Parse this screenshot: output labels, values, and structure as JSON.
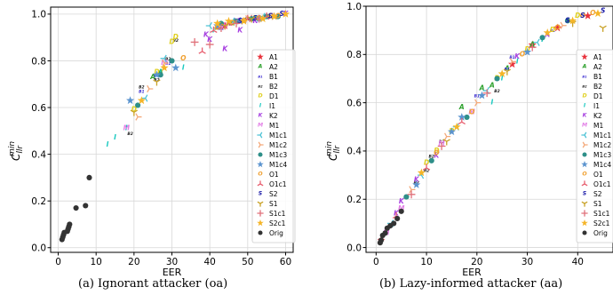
{
  "captions": [
    "(a) Ignorant attacker (oa)",
    "(b) Lazy-informed attacker (aa)"
  ],
  "colors": {
    "A1": "#e8323c",
    "A2": "#2ca02c",
    "B1": "#3b2bd1",
    "B2": "#222222",
    "D1": "#e0d020",
    "I1": "#19c9c0",
    "K2": "#a63ee0",
    "M1": "#e27ee6",
    "M1c1": "#4fc3d6",
    "M1c2": "#f4a97a",
    "M1c3": "#2e8f89",
    "M1c4": "#5b94cf",
    "O1": "#f0a030",
    "O1c1": "#e86070",
    "S2": "#1a1aa8",
    "S1": "#c9a227",
    "S1c1": "#e0707a",
    "S2c1": "#f5b528",
    "Orig": "#333333"
  },
  "chart_data": [
    {
      "type": "scatter",
      "xlabel": "EER",
      "ylabel": "C_llr^min",
      "xlim": [
        -2,
        62
      ],
      "ylim": [
        -0.02,
        1.03
      ],
      "xticks": [
        0,
        10,
        20,
        30,
        40,
        50,
        60
      ],
      "yticks": [
        0.0,
        0.2,
        0.4,
        0.6,
        0.8,
        1.0
      ],
      "grid": true,
      "legend_position": "right",
      "series": [
        {
          "name": "A1",
          "marker": "star",
          "x": [
            44,
            48,
            51,
            55
          ],
          "y": [
            0.95,
            0.97,
            0.98,
            0.99
          ]
        },
        {
          "name": "A2",
          "marker": "A",
          "x": [
            25,
            27,
            42,
            46,
            53
          ],
          "y": [
            0.73,
            0.75,
            0.94,
            0.96,
            0.98
          ]
        },
        {
          "name": "B1",
          "marker": "B1",
          "x": [
            22,
            26,
            29,
            43,
            49
          ],
          "y": [
            0.67,
            0.74,
            0.79,
            0.94,
            0.97
          ]
        },
        {
          "name": "B2",
          "marker": "B2",
          "x": [
            19,
            22,
            26,
            29,
            31,
            45,
            50,
            56
          ],
          "y": [
            0.49,
            0.69,
            0.72,
            0.81,
            0.89,
            0.96,
            0.98,
            0.99
          ]
        },
        {
          "name": "D1",
          "marker": "D",
          "x": [
            20,
            26,
            30,
            31,
            52
          ],
          "y": [
            0.59,
            0.75,
            0.88,
            0.9,
            0.98
          ]
        },
        {
          "name": "I1",
          "marker": "I",
          "x": [
            13,
            15,
            18,
            27,
            33,
            41,
            52
          ],
          "y": [
            0.44,
            0.47,
            0.51,
            0.75,
            0.77,
            0.93,
            0.98
          ]
        },
        {
          "name": "K2",
          "marker": "K",
          "x": [
            39,
            40,
            44,
            48,
            52,
            60
          ],
          "y": [
            0.91,
            0.89,
            0.85,
            0.93,
            0.97,
            1.0
          ]
        },
        {
          "name": "M1",
          "marker": "M",
          "x": [
            18,
            28,
            44,
            47
          ],
          "y": [
            0.51,
            0.79,
            0.95,
            0.97
          ]
        },
        {
          "name": "M1c1",
          "marker": "tri-left",
          "x": [
            23,
            28,
            40,
            46,
            54
          ],
          "y": [
            0.64,
            0.81,
            0.95,
            0.97,
            0.99
          ]
        },
        {
          "name": "M1c2",
          "marker": "tri-right",
          "x": [
            21,
            24,
            28,
            45,
            50,
            57
          ],
          "y": [
            0.56,
            0.68,
            0.79,
            0.96,
            0.98,
            0.99
          ]
        },
        {
          "name": "M1c3",
          "marker": "dot",
          "x": [
            21,
            27,
            30,
            43,
            47,
            51,
            55,
            58
          ],
          "y": [
            0.61,
            0.74,
            0.8,
            0.96,
            0.97,
            0.98,
            0.99,
            0.99
          ]
        },
        {
          "name": "M1c4",
          "marker": "star",
          "x": [
            19,
            26,
            31,
            42,
            48,
            53,
            57
          ],
          "y": [
            0.63,
            0.74,
            0.77,
            0.95,
            0.97,
            0.98,
            0.99
          ]
        },
        {
          "name": "O1",
          "marker": "O",
          "x": [
            33,
            42,
            46,
            49,
            53,
            56,
            58
          ],
          "y": [
            0.81,
            0.94,
            0.96,
            0.97,
            0.98,
            0.99,
            0.99
          ]
        },
        {
          "name": "O1c1",
          "marker": "tri-up",
          "x": [
            38,
            41,
            45,
            50,
            55
          ],
          "y": [
            0.84,
            0.93,
            0.96,
            0.98,
            0.99
          ]
        },
        {
          "name": "S2",
          "marker": "S",
          "x": [
            48,
            52,
            56,
            59
          ],
          "y": [
            0.97,
            0.98,
            0.99,
            1.0
          ]
        },
        {
          "name": "S1",
          "marker": "tri-down",
          "x": [
            20,
            26,
            44,
            51
          ],
          "y": [
            0.58,
            0.71,
            0.95,
            0.98
          ]
        },
        {
          "name": "S1c1",
          "marker": "plus",
          "x": [
            36,
            40,
            43,
            47,
            53
          ],
          "y": [
            0.88,
            0.87,
            0.94,
            0.96,
            0.98
          ]
        },
        {
          "name": "S2c1",
          "marker": "star",
          "x": [
            22,
            28,
            42,
            45,
            49,
            54,
            57,
            60
          ],
          "y": [
            0.63,
            0.77,
            0.96,
            0.97,
            0.97,
            0.98,
            0.99,
            1.0
          ]
        },
        {
          "name": "Orig",
          "marker": "dot",
          "x": [
            1.0,
            1.2,
            1.4,
            1.6,
            2.4,
            2.6,
            2.8,
            3.0,
            4.7,
            7.2,
            8.2
          ],
          "y": [
            0.035,
            0.045,
            0.055,
            0.065,
            0.07,
            0.08,
            0.09,
            0.1,
            0.17,
            0.18,
            0.3
          ]
        }
      ]
    },
    {
      "type": "scatter",
      "xlabel": "EER",
      "ylabel": "C_llr^min",
      "xlim": [
        -2,
        47
      ],
      "ylim": [
        -0.02,
        1.0
      ],
      "xticks": [
        0,
        10,
        20,
        30,
        40
      ],
      "yticks": [
        0.0,
        0.2,
        0.4,
        0.6,
        0.8,
        1.0
      ],
      "grid": true,
      "legend_position": "right",
      "series": [
        {
          "name": "A1",
          "marker": "star",
          "x": [
            27,
            31,
            36,
            42
          ],
          "y": [
            0.76,
            0.84,
            0.91,
            0.96
          ]
        },
        {
          "name": "A2",
          "marker": "A",
          "x": [
            17,
            21,
            23,
            26,
            31
          ],
          "y": [
            0.58,
            0.66,
            0.67,
            0.74,
            0.84
          ]
        },
        {
          "name": "B1",
          "marker": "B1",
          "x": [
            20,
            26,
            27,
            35
          ],
          "y": [
            0.63,
            0.74,
            0.79,
            0.9
          ]
        },
        {
          "name": "B2",
          "marker": "B2",
          "x": [
            6,
            8,
            10,
            11,
            13,
            24
          ],
          "y": [
            0.21,
            0.27,
            0.32,
            0.38,
            0.44,
            0.65
          ]
        },
        {
          "name": "D1",
          "marker": "D",
          "x": [
            10,
            12,
            15,
            24,
            30,
            35,
            40
          ],
          "y": [
            0.35,
            0.4,
            0.48,
            0.7,
            0.82,
            0.9,
            0.96
          ]
        },
        {
          "name": "I1",
          "marker": "I",
          "x": [
            23,
            25,
            28,
            33
          ],
          "y": [
            0.6,
            0.7,
            0.77,
            0.86
          ]
        },
        {
          "name": "K2",
          "marker": "K",
          "x": [
            4,
            5,
            8,
            12,
            28,
            34
          ],
          "y": [
            0.14,
            0.19,
            0.28,
            0.38,
            0.79,
            0.88
          ]
        },
        {
          "name": "M1",
          "marker": "M",
          "x": [
            2,
            5,
            13,
            19
          ],
          "y": [
            0.06,
            0.16,
            0.43,
            0.56
          ]
        },
        {
          "name": "M1c1",
          "marker": "tri-left",
          "x": [
            3,
            9,
            16,
            22,
            32
          ],
          "y": [
            0.1,
            0.3,
            0.5,
            0.65,
            0.85
          ]
        },
        {
          "name": "M1c2",
          "marker": "tri-right",
          "x": [
            7,
            14,
            20,
            27,
            37
          ],
          "y": [
            0.24,
            0.46,
            0.6,
            0.77,
            0.92
          ]
        },
        {
          "name": "M1c3",
          "marker": "dot",
          "x": [
            6,
            11,
            18,
            24,
            33,
            38
          ],
          "y": [
            0.21,
            0.36,
            0.54,
            0.7,
            0.87,
            0.94
          ]
        },
        {
          "name": "M1c4",
          "marker": "star",
          "x": [
            8,
            15,
            17,
            21,
            30
          ],
          "y": [
            0.26,
            0.48,
            0.54,
            0.63,
            0.81
          ]
        },
        {
          "name": "O1",
          "marker": "O",
          "x": [
            12,
            19,
            29,
            36,
            41,
            43
          ],
          "y": [
            0.39,
            0.56,
            0.8,
            0.91,
            0.96,
            0.97
          ]
        },
        {
          "name": "O1c1",
          "marker": "tri-up",
          "x": [
            1,
            4,
            10,
            17
          ],
          "y": [
            0.04,
            0.13,
            0.33,
            0.52
          ]
        },
        {
          "name": "S2",
          "marker": "S",
          "x": [
            38,
            41,
            45
          ],
          "y": [
            0.94,
            0.96,
            0.98
          ]
        },
        {
          "name": "S1",
          "marker": "tri-down",
          "x": [
            14,
            26,
            39,
            45
          ],
          "y": [
            0.44,
            0.73,
            0.93,
            0.91
          ]
        },
        {
          "name": "S1c1",
          "marker": "plus",
          "x": [
            7,
            13,
            22,
            31
          ],
          "y": [
            0.22,
            0.42,
            0.64,
            0.83
          ]
        },
        {
          "name": "S2c1",
          "marker": "star",
          "x": [
            9,
            16,
            25,
            34,
            39,
            44
          ],
          "y": [
            0.31,
            0.5,
            0.72,
            0.89,
            0.94,
            0.97
          ]
        },
        {
          "name": "Orig",
          "marker": "dot",
          "x": [
            0.8,
            1.0,
            1.3,
            1.8,
            2.2,
            2.8,
            3.5,
            4.2,
            5.0
          ],
          "y": [
            0.02,
            0.03,
            0.05,
            0.06,
            0.08,
            0.09,
            0.1,
            0.12,
            0.15
          ]
        }
      ]
    }
  ]
}
